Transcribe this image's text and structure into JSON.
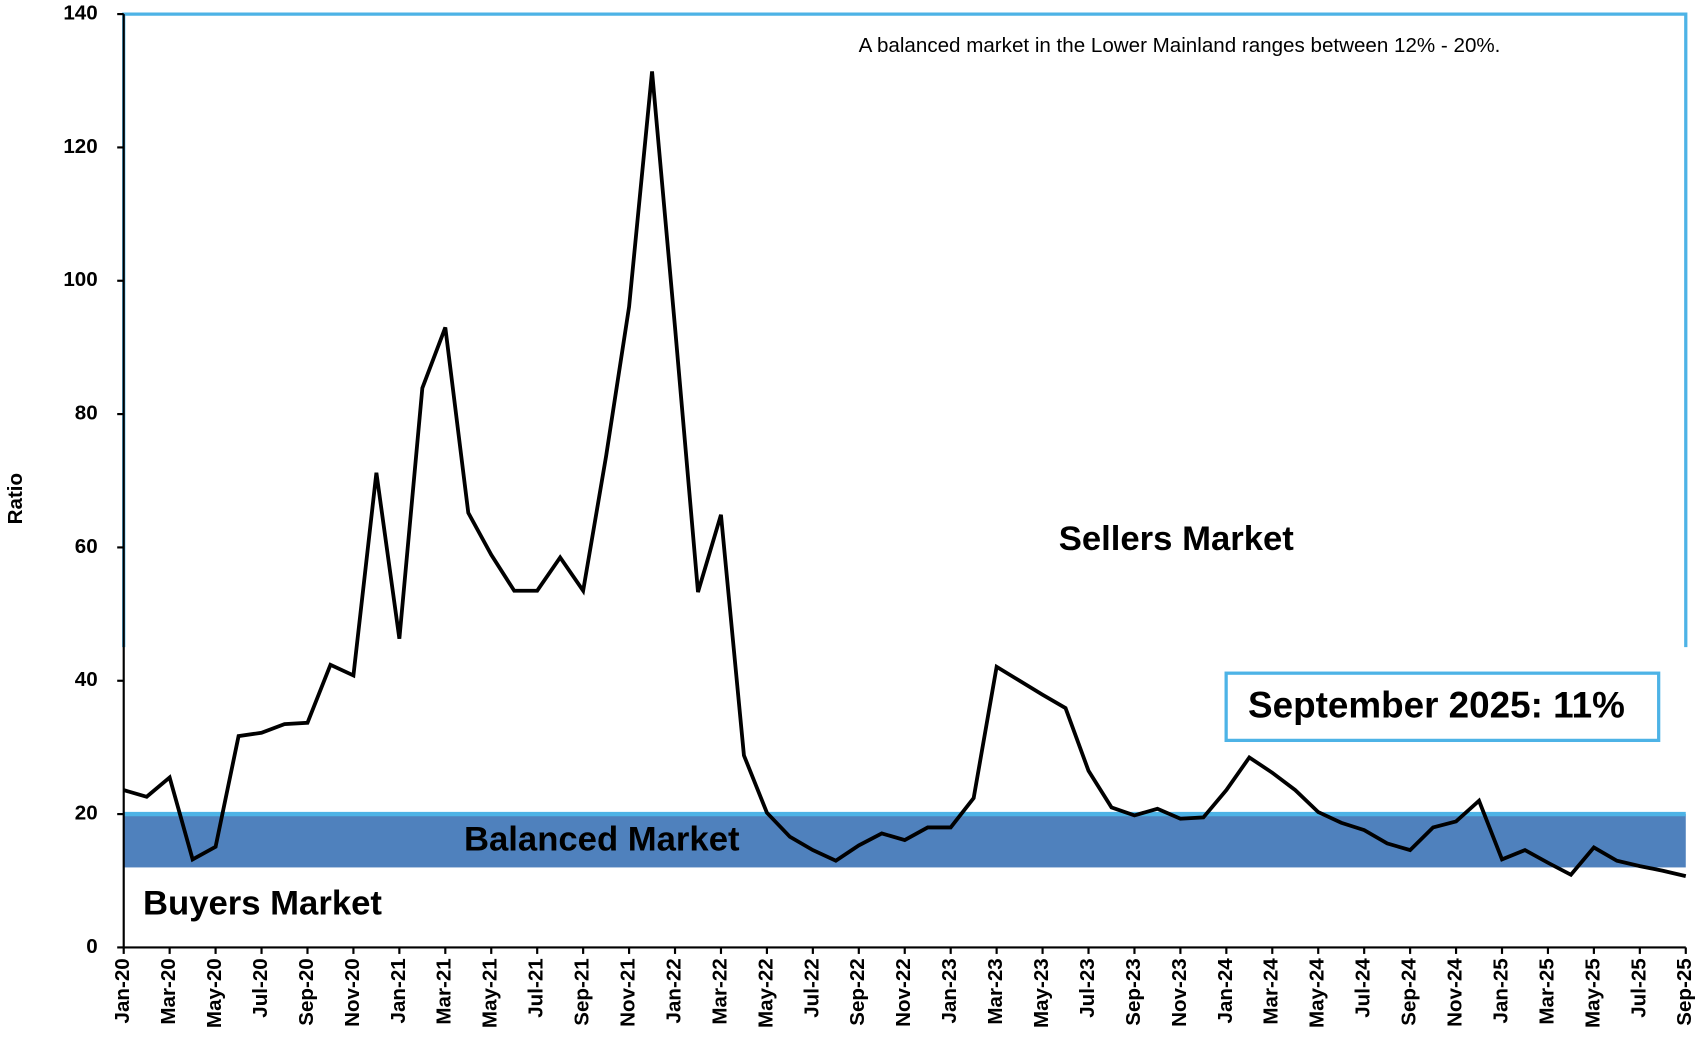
{
  "chart_data": {
    "type": "line",
    "y_label": "Ratio",
    "note": "A balanced market in the Lower Mainland ranges between 12% - 20%.",
    "sellers_label": "Sellers Market",
    "balanced_label": "Balanced Market",
    "buyers_label": "Buyers Market",
    "callout": "September 2025: 11%",
    "balanced_band": [
      12,
      20
    ],
    "band_color": "#4f81bd",
    "frame_color": "#4db3e6",
    "categories": [
      "Jan-20",
      null,
      "Mar-20",
      null,
      "May-20",
      null,
      "Jul-20",
      null,
      "Sep-20",
      null,
      "Nov-20",
      null,
      "Jan-21",
      null,
      "Mar-21",
      null,
      "May-21",
      null,
      "Jul-21",
      null,
      "Sep-21",
      null,
      "Nov-21",
      null,
      "Jan-22",
      null,
      "Mar-22",
      null,
      "May-22",
      null,
      "Jul-22",
      null,
      "Sep-22",
      null,
      "Nov-22",
      null,
      "Jan-23",
      null,
      "Mar-23",
      null,
      "May-23",
      null,
      "Jul-23",
      null,
      "Sep-23",
      null,
      "Nov-23",
      null,
      "Jan-24",
      null,
      "Mar-24",
      null,
      "May-24",
      null,
      "Jul-24",
      null,
      "Sep-24",
      null,
      "Nov-24",
      null,
      "Jan-25",
      null,
      "Mar-25",
      null,
      "May-25",
      null,
      "Jul-25",
      null,
      "Sep-25"
    ],
    "series": [
      {
        "color": "#000000",
        "values": [
          23.6,
          22.6,
          25.5,
          13.2,
          15.1,
          31.7,
          32.2,
          33.5,
          33.7,
          42.4,
          40.8,
          71.2,
          46.3,
          83.9,
          93.0,
          65.2,
          58.9,
          53.5,
          53.5,
          58.5,
          53.5,
          73.7,
          96.1,
          131.4,
          93.0,
          53.3,
          64.9,
          28.8,
          20.2,
          16.6,
          14.6,
          13.0,
          15.3,
          17.1,
          16.1,
          18.0,
          18.0,
          22.4,
          42.1,
          40.0,
          37.9,
          35.9,
          26.5,
          21.0,
          19.8,
          20.8,
          19.3,
          19.5,
          23.6,
          28.5,
          26.2,
          23.6,
          20.3,
          18.7,
          17.6,
          15.6,
          14.6,
          18.0,
          18.9,
          22.0,
          13.2,
          14.6,
          12.7,
          10.9,
          15.0,
          13.0,
          12.2,
          11.5,
          10.7
        ]
      }
    ],
    "ylim": [
      0,
      140
    ],
    "yticks": [
      0,
      20,
      40,
      60,
      80,
      100,
      120,
      140
    ],
    "grid": false
  }
}
